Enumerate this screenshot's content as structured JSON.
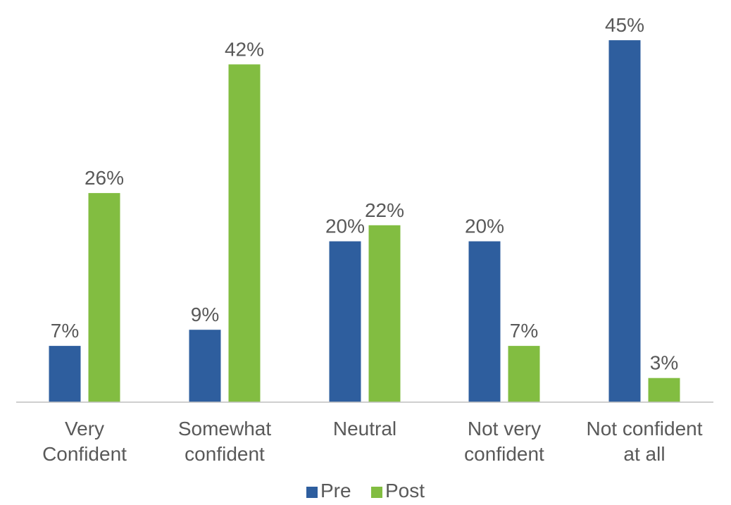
{
  "chart_data": {
    "type": "bar",
    "categories": [
      [
        "Very",
        "Confident"
      ],
      [
        "Somewhat",
        "confident"
      ],
      [
        "Neutral"
      ],
      [
        "Not very",
        "confident"
      ],
      [
        "Not confident",
        "at all"
      ]
    ],
    "series": [
      {
        "name": "Pre",
        "color": "#2E5E9E",
        "values": [
          7,
          9,
          20,
          20,
          45
        ],
        "labels": [
          "7%",
          "9%",
          "20%",
          "20%",
          "45%"
        ]
      },
      {
        "name": "Post",
        "color": "#82BD41",
        "values": [
          26,
          42,
          22,
          7,
          3
        ],
        "labels": [
          "26%",
          "42%",
          "22%",
          "7%",
          "3%"
        ]
      }
    ],
    "ylim": [
      0,
      45
    ],
    "grid": false,
    "legend_position": "bottom",
    "axis_color": "#BFBFBF"
  }
}
